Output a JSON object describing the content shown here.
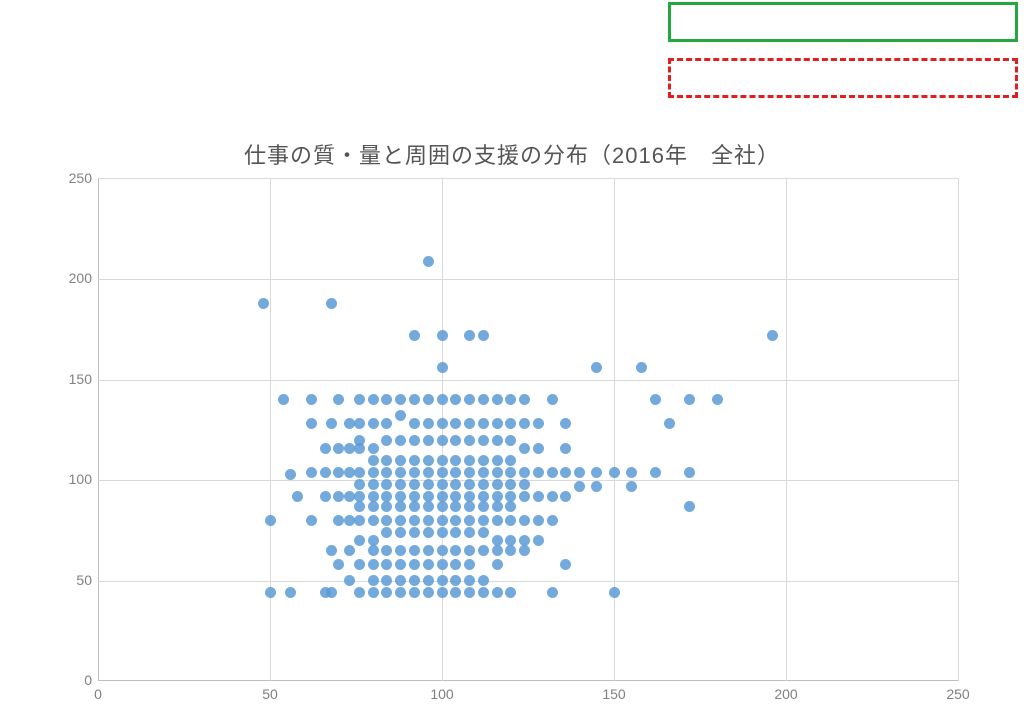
{
  "legend": {
    "solid_border_color": "#22a83f",
    "dashed_border_color": "#e02020"
  },
  "chart": {
    "type": "scatter",
    "title": "仕事の質・量と周囲の支援の分布（2016年　全社）",
    "title_fontsize": 22,
    "title_color": "#555555",
    "background_color": "#ffffff",
    "plot_background": "#ffffff",
    "grid_color": "#d9d9d9",
    "axis_color": "#bfbfbf",
    "tick_label_color": "#808080",
    "tick_fontsize": 14,
    "marker_color": "#5b9bd5",
    "marker_opacity": 0.85,
    "marker_radius": 5.5,
    "xlim": [
      0,
      250
    ],
    "ylim": [
      0,
      250
    ],
    "xtick_step": 50,
    "ytick_step": 50,
    "xticks": [
      0,
      50,
      100,
      150,
      200,
      250
    ],
    "yticks": [
      0,
      50,
      100,
      150,
      200,
      250
    ],
    "points": [
      [
        48,
        188
      ],
      [
        50,
        80
      ],
      [
        50,
        44
      ],
      [
        54,
        140
      ],
      [
        56,
        103
      ],
      [
        56,
        44
      ],
      [
        58,
        92
      ],
      [
        62,
        140
      ],
      [
        62,
        128
      ],
      [
        62,
        104
      ],
      [
        62,
        80
      ],
      [
        66,
        116
      ],
      [
        66,
        104
      ],
      [
        66,
        92
      ],
      [
        66,
        44
      ],
      [
        68,
        188
      ],
      [
        68,
        128
      ],
      [
        68,
        65
      ],
      [
        68,
        44
      ],
      [
        70,
        140
      ],
      [
        70,
        116
      ],
      [
        70,
        104
      ],
      [
        70,
        92
      ],
      [
        70,
        80
      ],
      [
        70,
        58
      ],
      [
        73,
        128
      ],
      [
        73,
        116
      ],
      [
        73,
        104
      ],
      [
        73,
        92
      ],
      [
        73,
        80
      ],
      [
        73,
        65
      ],
      [
        73,
        50
      ],
      [
        76,
        140
      ],
      [
        76,
        128
      ],
      [
        76,
        120
      ],
      [
        76,
        116
      ],
      [
        76,
        104
      ],
      [
        76,
        98
      ],
      [
        76,
        92
      ],
      [
        76,
        87
      ],
      [
        76,
        80
      ],
      [
        76,
        70
      ],
      [
        76,
        58
      ],
      [
        76,
        44
      ],
      [
        80,
        140
      ],
      [
        80,
        128
      ],
      [
        80,
        116
      ],
      [
        80,
        110
      ],
      [
        80,
        104
      ],
      [
        80,
        98
      ],
      [
        80,
        92
      ],
      [
        80,
        87
      ],
      [
        80,
        80
      ],
      [
        80,
        70
      ],
      [
        80,
        65
      ],
      [
        80,
        58
      ],
      [
        80,
        50
      ],
      [
        80,
        44
      ],
      [
        84,
        140
      ],
      [
        84,
        128
      ],
      [
        84,
        120
      ],
      [
        84,
        110
      ],
      [
        84,
        104
      ],
      [
        84,
        98
      ],
      [
        84,
        92
      ],
      [
        84,
        87
      ],
      [
        84,
        80
      ],
      [
        84,
        74
      ],
      [
        84,
        65
      ],
      [
        84,
        58
      ],
      [
        84,
        50
      ],
      [
        84,
        44
      ],
      [
        88,
        140
      ],
      [
        88,
        132
      ],
      [
        88,
        120
      ],
      [
        88,
        110
      ],
      [
        88,
        104
      ],
      [
        88,
        98
      ],
      [
        88,
        92
      ],
      [
        88,
        87
      ],
      [
        88,
        80
      ],
      [
        88,
        74
      ],
      [
        88,
        65
      ],
      [
        88,
        58
      ],
      [
        88,
        50
      ],
      [
        88,
        44
      ],
      [
        92,
        172
      ],
      [
        92,
        140
      ],
      [
        92,
        128
      ],
      [
        92,
        120
      ],
      [
        92,
        110
      ],
      [
        92,
        104
      ],
      [
        92,
        98
      ],
      [
        92,
        92
      ],
      [
        92,
        87
      ],
      [
        92,
        80
      ],
      [
        92,
        74
      ],
      [
        92,
        65
      ],
      [
        92,
        58
      ],
      [
        92,
        50
      ],
      [
        92,
        44
      ],
      [
        96,
        209
      ],
      [
        96,
        140
      ],
      [
        96,
        128
      ],
      [
        96,
        120
      ],
      [
        96,
        110
      ],
      [
        96,
        104
      ],
      [
        96,
        98
      ],
      [
        96,
        92
      ],
      [
        96,
        87
      ],
      [
        96,
        80
      ],
      [
        96,
        74
      ],
      [
        96,
        65
      ],
      [
        96,
        58
      ],
      [
        96,
        50
      ],
      [
        96,
        44
      ],
      [
        100,
        172
      ],
      [
        100,
        156
      ],
      [
        100,
        140
      ],
      [
        100,
        128
      ],
      [
        100,
        120
      ],
      [
        100,
        110
      ],
      [
        100,
        104
      ],
      [
        100,
        98
      ],
      [
        100,
        92
      ],
      [
        100,
        87
      ],
      [
        100,
        80
      ],
      [
        100,
        74
      ],
      [
        100,
        65
      ],
      [
        100,
        58
      ],
      [
        100,
        50
      ],
      [
        100,
        44
      ],
      [
        104,
        140
      ],
      [
        104,
        128
      ],
      [
        104,
        120
      ],
      [
        104,
        110
      ],
      [
        104,
        104
      ],
      [
        104,
        98
      ],
      [
        104,
        92
      ],
      [
        104,
        87
      ],
      [
        104,
        80
      ],
      [
        104,
        74
      ],
      [
        104,
        65
      ],
      [
        104,
        58
      ],
      [
        104,
        50
      ],
      [
        104,
        44
      ],
      [
        108,
        172
      ],
      [
        108,
        140
      ],
      [
        108,
        128
      ],
      [
        108,
        120
      ],
      [
        108,
        110
      ],
      [
        108,
        104
      ],
      [
        108,
        98
      ],
      [
        108,
        92
      ],
      [
        108,
        87
      ],
      [
        108,
        80
      ],
      [
        108,
        74
      ],
      [
        108,
        65
      ],
      [
        108,
        58
      ],
      [
        108,
        50
      ],
      [
        108,
        44
      ],
      [
        112,
        172
      ],
      [
        112,
        140
      ],
      [
        112,
        128
      ],
      [
        112,
        120
      ],
      [
        112,
        110
      ],
      [
        112,
        104
      ],
      [
        112,
        98
      ],
      [
        112,
        92
      ],
      [
        112,
        87
      ],
      [
        112,
        80
      ],
      [
        112,
        74
      ],
      [
        112,
        65
      ],
      [
        112,
        50
      ],
      [
        112,
        44
      ],
      [
        116,
        140
      ],
      [
        116,
        128
      ],
      [
        116,
        120
      ],
      [
        116,
        110
      ],
      [
        116,
        104
      ],
      [
        116,
        98
      ],
      [
        116,
        92
      ],
      [
        116,
        87
      ],
      [
        116,
        80
      ],
      [
        116,
        70
      ],
      [
        116,
        65
      ],
      [
        116,
        58
      ],
      [
        116,
        44
      ],
      [
        120,
        140
      ],
      [
        120,
        128
      ],
      [
        120,
        120
      ],
      [
        120,
        110
      ],
      [
        120,
        104
      ],
      [
        120,
        98
      ],
      [
        120,
        92
      ],
      [
        120,
        87
      ],
      [
        120,
        80
      ],
      [
        120,
        70
      ],
      [
        120,
        65
      ],
      [
        120,
        44
      ],
      [
        124,
        140
      ],
      [
        124,
        128
      ],
      [
        124,
        116
      ],
      [
        124,
        104
      ],
      [
        124,
        98
      ],
      [
        124,
        92
      ],
      [
        124,
        80
      ],
      [
        124,
        70
      ],
      [
        124,
        65
      ],
      [
        128,
        128
      ],
      [
        128,
        116
      ],
      [
        128,
        104
      ],
      [
        128,
        92
      ],
      [
        128,
        80
      ],
      [
        128,
        70
      ],
      [
        132,
        140
      ],
      [
        132,
        104
      ],
      [
        132,
        92
      ],
      [
        132,
        80
      ],
      [
        132,
        44
      ],
      [
        136,
        128
      ],
      [
        136,
        116
      ],
      [
        136,
        104
      ],
      [
        136,
        92
      ],
      [
        136,
        58
      ],
      [
        140,
        104
      ],
      [
        140,
        97
      ],
      [
        145,
        156
      ],
      [
        145,
        104
      ],
      [
        145,
        97
      ],
      [
        150,
        104
      ],
      [
        150,
        44
      ],
      [
        155,
        97
      ],
      [
        155,
        104
      ],
      [
        158,
        156
      ],
      [
        162,
        140
      ],
      [
        162,
        104
      ],
      [
        166,
        128
      ],
      [
        172,
        140
      ],
      [
        172,
        104
      ],
      [
        172,
        87
      ],
      [
        180,
        140
      ],
      [
        196,
        172
      ]
    ]
  }
}
